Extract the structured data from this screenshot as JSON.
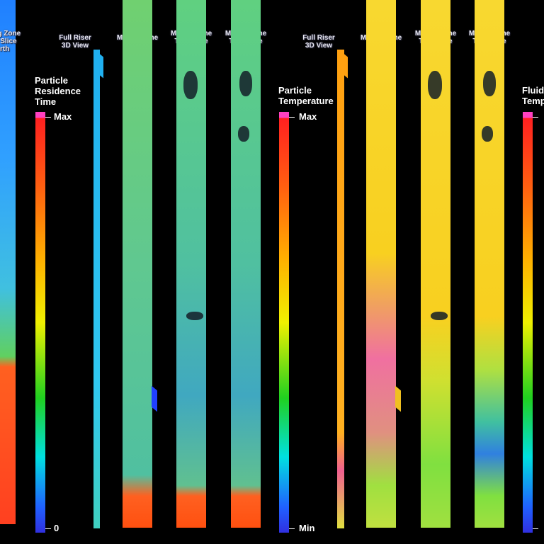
{
  "panels": {
    "left_partial_label": "Mixing Zone\nThin Slice\nNorth",
    "residence": {
      "title": "Particle\nResidence\nTime",
      "max_label": "Max",
      "min_label": "0",
      "columns": [
        "Full Riser\n3D View",
        "Mixing Zone\n3D View",
        "Mixing Zone\nThin Slice\nWest",
        "Mixing Zone\nThin Slice\nNorth"
      ]
    },
    "temperature": {
      "title": "Particle\nTemperature",
      "max_label": "Max",
      "min_label": "Min",
      "columns": [
        "Full Riser\n3D View",
        "Mixing Zone\n3D View",
        "Mixing Zone\nThin Slice\nWest",
        "Mixing Zone\nThin Slice\nNorth"
      ]
    },
    "fluid": {
      "title": "Fluid\nTemp"
    }
  }
}
